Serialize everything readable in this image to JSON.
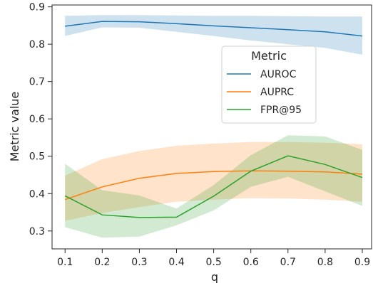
{
  "chart_data": {
    "type": "line",
    "title": "",
    "xlabel": "q",
    "ylabel": "Metric value",
    "x": [
      0.1,
      0.2,
      0.3,
      0.4,
      0.5,
      0.6,
      0.7,
      0.8,
      0.9
    ],
    "x_ticks": [
      "0.1",
      "0.2",
      "0.3",
      "0.4",
      "0.5",
      "0.6",
      "0.7",
      "0.8",
      "0.9"
    ],
    "y_ticks": [
      "0.3",
      "0.4",
      "0.5",
      "0.6",
      "0.7",
      "0.8",
      "0.9"
    ],
    "xlim": [
      0.065,
      0.925
    ],
    "ylim": [
      0.252,
      0.905
    ],
    "grid": false,
    "legend": {
      "title": "Metric",
      "placement": "upper-right"
    },
    "series": [
      {
        "name": "AUROC",
        "color": "#1f77b4",
        "values": [
          0.848,
          0.861,
          0.86,
          0.855,
          0.849,
          0.844,
          0.839,
          0.833,
          0.822
        ],
        "band_upper": [
          0.876,
          0.878,
          0.878,
          0.877,
          0.876,
          0.876,
          0.875,
          0.874,
          0.874
        ],
        "band_lower": [
          0.822,
          0.845,
          0.844,
          0.833,
          0.822,
          0.81,
          0.8,
          0.79,
          0.772
        ]
      },
      {
        "name": "AUPRC",
        "color": "#ff7f0e",
        "values": [
          0.384,
          0.418,
          0.441,
          0.454,
          0.459,
          0.461,
          0.46,
          0.458,
          0.452
        ],
        "band_upper": [
          0.448,
          0.492,
          0.514,
          0.528,
          0.534,
          0.538,
          0.538,
          0.536,
          0.532
        ],
        "band_lower": [
          0.327,
          0.348,
          0.364,
          0.378,
          0.384,
          0.388,
          0.387,
          0.384,
          0.378
        ]
      },
      {
        "name": "FPR@95",
        "color": "#2ca02c",
        "values": [
          0.394,
          0.343,
          0.336,
          0.337,
          0.393,
          0.46,
          0.501,
          0.478,
          0.443
        ],
        "band_upper": [
          0.48,
          0.409,
          0.395,
          0.36,
          0.423,
          0.503,
          0.556,
          0.553,
          0.517
        ],
        "band_lower": [
          0.31,
          0.282,
          0.285,
          0.315,
          0.355,
          0.418,
          0.445,
          0.406,
          0.367
        ]
      }
    ]
  }
}
